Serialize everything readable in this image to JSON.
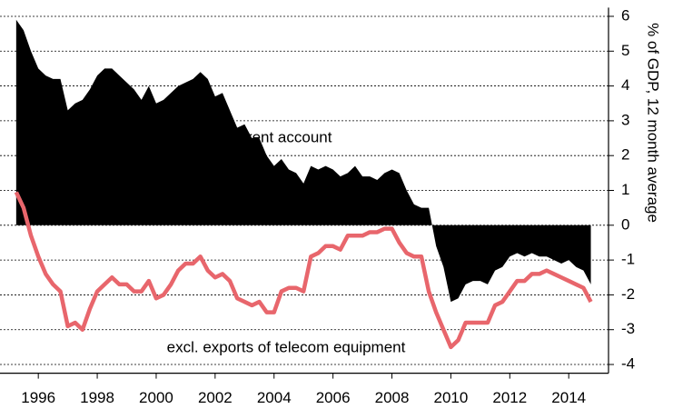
{
  "chart_data": {
    "type": "line",
    "y_axis_label": "% of GDP, 12 month average",
    "annotations": [
      "Current account",
      "excl. exports of telecom equipment"
    ],
    "x": [
      1995.25,
      1995.5,
      1995.75,
      1996,
      1996.25,
      1996.5,
      1996.75,
      1997,
      1997.25,
      1997.5,
      1997.75,
      1998,
      1998.25,
      1998.5,
      1998.75,
      1999,
      1999.25,
      1999.5,
      1999.75,
      2000,
      2000.25,
      2000.5,
      2000.75,
      2001,
      2001.25,
      2001.5,
      2001.75,
      2002,
      2002.25,
      2002.5,
      2002.75,
      2003,
      2003.25,
      2003.5,
      2003.75,
      2004,
      2004.25,
      2004.5,
      2004.75,
      2005,
      2005.25,
      2005.5,
      2005.75,
      2006,
      2006.25,
      2006.5,
      2006.75,
      2007,
      2007.25,
      2007.5,
      2007.75,
      2008,
      2008.25,
      2008.5,
      2008.75,
      2009,
      2009.25,
      2009.5,
      2009.75,
      2010,
      2010.25,
      2010.5,
      2010.75,
      2011,
      2011.25,
      2011.5,
      2011.75,
      2012,
      2012.25,
      2012.5,
      2012.75,
      2013,
      2013.25,
      2013.5,
      2013.75,
      2014,
      2014.25,
      2014.5,
      2014.75
    ],
    "series": [
      {
        "name": "Current account",
        "color": "#000000",
        "mark": "area",
        "values": [
          5.9,
          5.6,
          5.0,
          4.5,
          4.3,
          4.2,
          4.2,
          3.3,
          3.5,
          3.6,
          3.9,
          4.3,
          4.5,
          4.5,
          4.3,
          4.1,
          3.9,
          3.6,
          4.0,
          3.5,
          3.6,
          3.8,
          4.0,
          4.1,
          4.2,
          4.4,
          4.2,
          3.7,
          3.8,
          3.3,
          2.8,
          2.9,
          2.5,
          2.5,
          2.0,
          1.7,
          1.9,
          1.6,
          1.5,
          1.2,
          1.7,
          1.6,
          1.7,
          1.6,
          1.4,
          1.5,
          1.7,
          1.4,
          1.4,
          1.3,
          1.5,
          1.6,
          1.5,
          1.0,
          0.6,
          0.5,
          0.5,
          -0.6,
          -1.2,
          -2.2,
          -2.1,
          -1.7,
          -1.6,
          -1.6,
          -1.7,
          -1.3,
          -1.2,
          -0.9,
          -0.8,
          -0.9,
          -0.8,
          -0.9,
          -0.9,
          -1.0,
          -1.1,
          -1.0,
          -1.2,
          -1.3,
          -1.7
        ]
      },
      {
        "name": "excl. exports of telecom equipment",
        "color": "#e8666c",
        "mark": "line",
        "values": [
          0.95,
          0.5,
          -0.3,
          -0.9,
          -1.4,
          -1.7,
          -1.9,
          -2.9,
          -2.8,
          -3.0,
          -2.4,
          -1.9,
          -1.7,
          -1.5,
          -1.7,
          -1.7,
          -1.9,
          -1.9,
          -1.6,
          -2.1,
          -2.0,
          -1.7,
          -1.3,
          -1.1,
          -1.1,
          -0.9,
          -1.3,
          -1.5,
          -1.4,
          -1.6,
          -2.1,
          -2.2,
          -2.3,
          -2.2,
          -2.5,
          -2.5,
          -1.9,
          -1.8,
          -1.8,
          -1.9,
          -0.9,
          -0.8,
          -0.6,
          -0.6,
          -0.7,
          -0.3,
          -0.3,
          -0.3,
          -0.2,
          -0.2,
          -0.1,
          -0.1,
          -0.5,
          -0.8,
          -0.9,
          -0.9,
          -1.9,
          -2.5,
          -3.0,
          -3.5,
          -3.3,
          -2.8,
          -2.8,
          -2.8,
          -2.8,
          -2.3,
          -2.2,
          -1.9,
          -1.6,
          -1.6,
          -1.4,
          -1.4,
          -1.3,
          -1.4,
          -1.5,
          -1.6,
          -1.7,
          -1.8,
          -2.2
        ]
      }
    ],
    "xlim": [
      1994.7,
      2015.35
    ],
    "xticks": [
      1996,
      1998,
      2000,
      2002,
      2004,
      2006,
      2008,
      2010,
      2012,
      2014
    ],
    "ylim": [
      -4.25,
      6.25
    ],
    "yticks": [
      -4,
      -3,
      -2,
      -1,
      0,
      1,
      2,
      3,
      4,
      5,
      6
    ],
    "y_axis_side": "right",
    "grid": true
  }
}
